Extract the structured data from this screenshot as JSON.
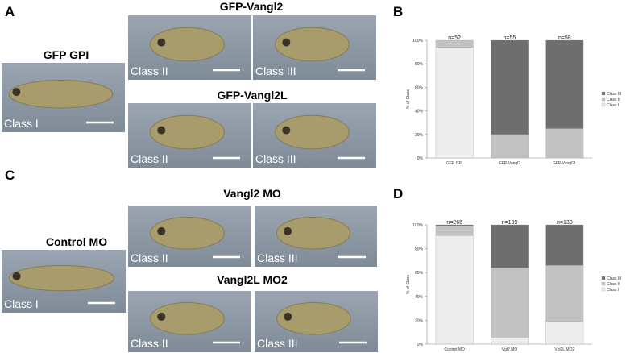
{
  "figure": {
    "letters": [
      "A",
      "B",
      "C",
      "D"
    ],
    "titles": [
      "GFP GPI",
      "GFP-Vangl2",
      "GFP-Vangl2L",
      "Control MO",
      "Vangl2 MO",
      "Vangl2L MO2"
    ],
    "photo_labels": [
      "Class I",
      "Class II",
      "Class III",
      "Class II",
      "Class III",
      "Class I",
      "Class II",
      "Class III",
      "Class II",
      "Class III"
    ]
  },
  "chart_data": [
    {
      "type": "bar",
      "stacked": true,
      "ylabel": "% of Class",
      "categories": [
        "GFP GPI",
        "GFP-Vangl2",
        "GFP-Vangl2L"
      ],
      "annotations": [
        "n=52",
        "n=55",
        "n=58"
      ],
      "series": [
        {
          "name": "Class I",
          "color": "#ededed",
          "values": [
            94,
            0,
            0
          ]
        },
        {
          "name": "Class II",
          "color": "#c2c2c2",
          "values": [
            6,
            20,
            25
          ]
        },
        {
          "name": "Class III",
          "color": "#6e6e6e",
          "values": [
            0,
            80,
            75
          ]
        }
      ],
      "ylim": [
        0,
        100
      ],
      "yticks": [
        {
          "value": 0,
          "label": "0%"
        },
        {
          "value": 20,
          "label": "20%"
        },
        {
          "value": 40,
          "label": "40%"
        },
        {
          "value": 60,
          "label": "60%"
        },
        {
          "value": 80,
          "label": "80%"
        },
        {
          "value": 100,
          "label": "100%"
        }
      ]
    },
    {
      "type": "bar",
      "stacked": true,
      "ylabel": "% of Class",
      "categories": [
        "Control MO",
        "Vgl2 MO",
        "Vgl2L MO2"
      ],
      "annotations": [
        "n=266",
        "n=139",
        "n=130"
      ],
      "series": [
        {
          "name": "Class I",
          "color": "#ededed",
          "values": [
            91,
            5,
            19
          ]
        },
        {
          "name": "Class II",
          "color": "#c2c2c2",
          "values": [
            8,
            59,
            47
          ]
        },
        {
          "name": "Class III",
          "color": "#6e6e6e",
          "values": [
            1,
            36,
            34
          ]
        }
      ],
      "ylim": [
        0,
        100
      ],
      "yticks": [
        {
          "value": 0,
          "label": "0%"
        },
        {
          "value": 20,
          "label": "20%"
        },
        {
          "value": 40,
          "label": "40%"
        },
        {
          "value": 60,
          "label": "60%"
        },
        {
          "value": 80,
          "label": "80%"
        },
        {
          "value": 100,
          "label": "100%"
        }
      ]
    }
  ]
}
